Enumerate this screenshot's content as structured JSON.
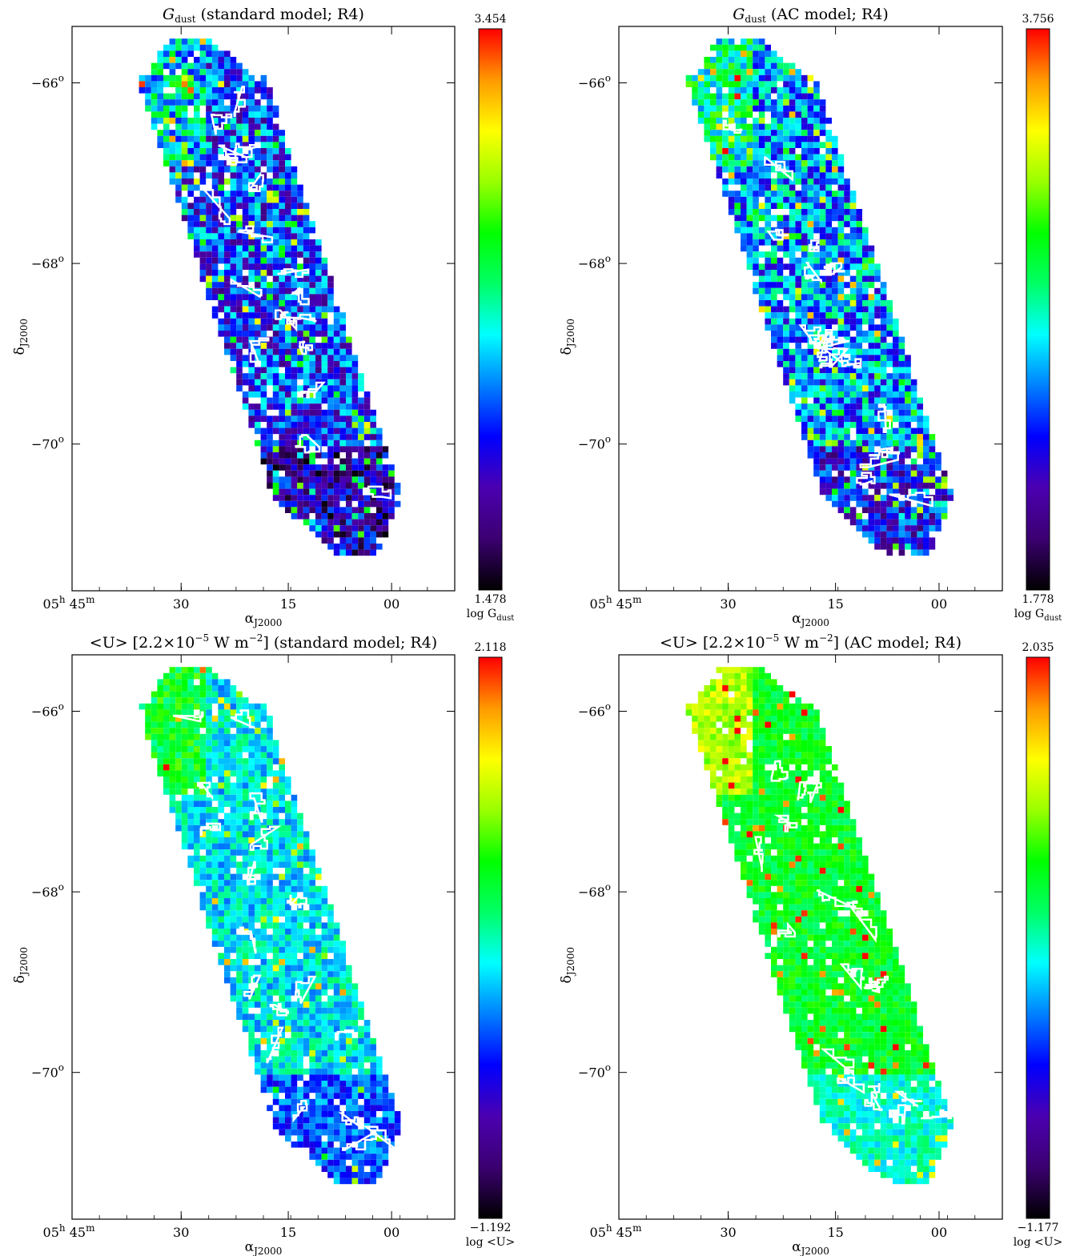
{
  "chart_data": [
    {
      "type": "heatmap",
      "title_main": "G",
      "title_sub": "dust",
      "title_rest": " (standard model; R4)",
      "colorbar": {
        "max": "3.454",
        "min": "1.478",
        "label_main": "log G",
        "label_sub": "dust"
      },
      "xlabel_main": "α",
      "xlabel_sub": "J2000",
      "ylabel_main": "δ",
      "ylabel_sub": "J2000",
      "x_ticks": [
        "45",
        "30",
        "15",
        "00"
      ],
      "x_first_hours": "05",
      "h_sup": "h",
      "m_sup": "m",
      "y_ticks": [
        "−66",
        "−68",
        "−70"
      ],
      "deg_sup": "o",
      "colormap": [
        "#000000",
        "#3b0070",
        "#4b00b0",
        "#0000ff",
        "#0080ff",
        "#00ffff",
        "#00ff66",
        "#00ff00",
        "#99ff00",
        "#ffff00",
        "#ff9900",
        "#ff0000"
      ],
      "mean_level": 0.3,
      "level_spread": 0.18,
      "high_frac": 0.08
    },
    {
      "type": "heatmap",
      "title_main": "G",
      "title_sub": "dust",
      "title_rest": " (AC model; R4)",
      "colorbar": {
        "max": "3.756",
        "min": "1.778",
        "label_main": "log G",
        "label_sub": "dust"
      },
      "xlabel_main": "α",
      "xlabel_sub": "J2000",
      "ylabel_main": "δ",
      "ylabel_sub": "J2000",
      "x_ticks": [
        "45",
        "30",
        "15",
        "00"
      ],
      "x_first_hours": "05",
      "h_sup": "h",
      "m_sup": "m",
      "y_ticks": [
        "−66",
        "−68",
        "−70"
      ],
      "deg_sup": "o",
      "colormap": [
        "#000000",
        "#3b0070",
        "#4b00b0",
        "#0000ff",
        "#0080ff",
        "#00ffff",
        "#00ff66",
        "#00ff00",
        "#99ff00",
        "#ffff00",
        "#ff9900",
        "#ff0000"
      ],
      "mean_level": 0.38,
      "level_spread": 0.17,
      "high_frac": 0.09
    },
    {
      "type": "heatmap",
      "title_main": "<U> [2.2×10",
      "title_sup": "−5",
      "title_rest": " W m",
      "title_sup2": "−2",
      "title_rest2": "] (standard model; R4)",
      "colorbar": {
        "max": "2.118",
        "min": "−1.192",
        "label_main": "log <U>",
        "label_sub": ""
      },
      "xlabel_main": "α",
      "xlabel_sub": "J2000",
      "ylabel_main": "δ",
      "ylabel_sub": "J2000",
      "x_ticks": [
        "45",
        "30",
        "15",
        "00"
      ],
      "x_first_hours": "05",
      "h_sup": "h",
      "m_sup": "m",
      "y_ticks": [
        "−66",
        "−68",
        "−70"
      ],
      "deg_sup": "o",
      "colormap": [
        "#000000",
        "#3b0070",
        "#4b00b0",
        "#0000ff",
        "#0080ff",
        "#00ffff",
        "#00ff66",
        "#00ff00",
        "#99ff00",
        "#ffff00",
        "#ff9900",
        "#ff0000"
      ],
      "mean_level": 0.45,
      "level_spread": 0.1,
      "high_frac": 0.03
    },
    {
      "type": "heatmap",
      "title_main": "<U> [2.2×10",
      "title_sup": "−5",
      "title_rest": " W m",
      "title_sup2": "−2",
      "title_rest2": "] (AC model; R4)",
      "colorbar": {
        "max": "2.035",
        "min": "−1.177",
        "label_main": "log <U>",
        "label_sub": ""
      },
      "xlabel_main": "α",
      "xlabel_sub": "J2000",
      "ylabel_main": "δ",
      "ylabel_sub": "J2000",
      "x_ticks": [
        "45",
        "30",
        "15",
        "00"
      ],
      "x_first_hours": "05",
      "h_sup": "h",
      "m_sup": "m",
      "y_ticks": [
        "−66",
        "−68",
        "−70"
      ],
      "deg_sup": "o",
      "colormap": [
        "#000000",
        "#3b0070",
        "#4b00b0",
        "#0000ff",
        "#0080ff",
        "#00ffff",
        "#00ff66",
        "#00ff00",
        "#99ff00",
        "#ffff00",
        "#ff9900",
        "#ff0000"
      ],
      "mean_level": 0.6,
      "level_spread": 0.07,
      "high_frac": 0.04
    }
  ]
}
